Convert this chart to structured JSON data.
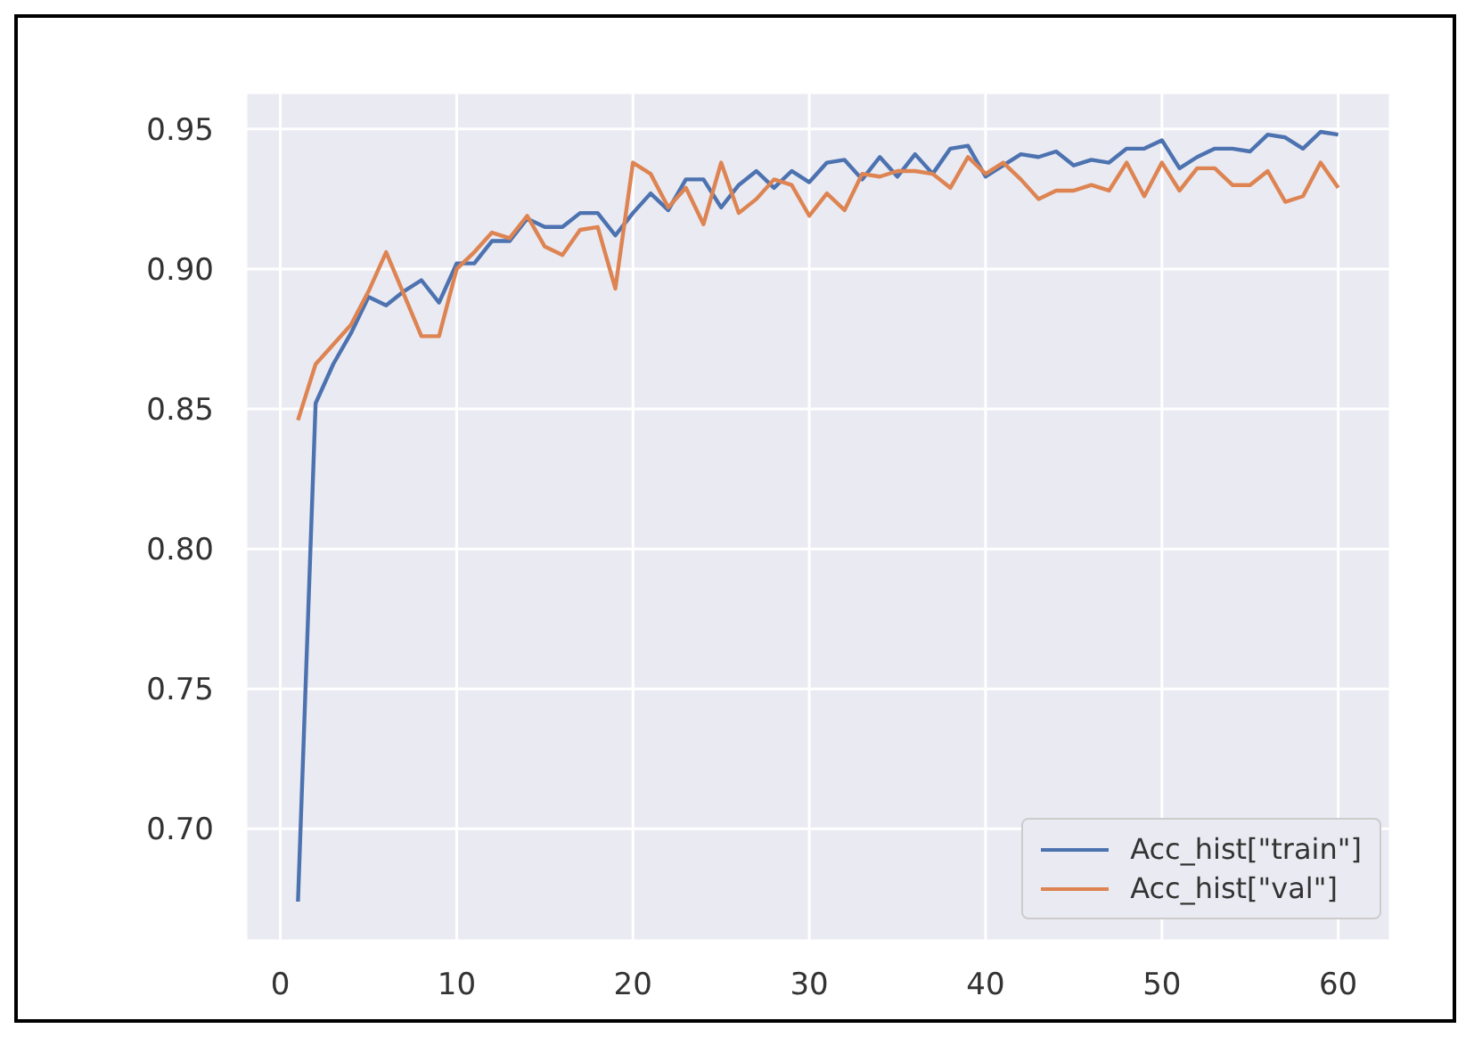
{
  "chart_data": {
    "type": "line",
    "x": [
      1,
      2,
      3,
      4,
      5,
      6,
      7,
      8,
      9,
      10,
      11,
      12,
      13,
      14,
      15,
      16,
      17,
      18,
      19,
      20,
      21,
      22,
      23,
      24,
      25,
      26,
      27,
      28,
      29,
      30,
      31,
      32,
      33,
      34,
      35,
      36,
      37,
      38,
      39,
      40,
      41,
      42,
      43,
      44,
      45,
      46,
      47,
      48,
      49,
      50,
      51,
      52,
      53,
      54,
      55,
      56,
      57,
      58,
      59,
      60
    ],
    "series": [
      {
        "name": "Acc_hist[\"train\"]",
        "color": "#4c72b0",
        "values": [
          0.674,
          0.852,
          0.866,
          0.877,
          0.89,
          0.887,
          0.892,
          0.896,
          0.888,
          0.902,
          0.902,
          0.91,
          0.91,
          0.918,
          0.915,
          0.915,
          0.92,
          0.92,
          0.912,
          0.92,
          0.927,
          0.921,
          0.932,
          0.932,
          0.922,
          0.93,
          0.935,
          0.929,
          0.935,
          0.931,
          0.938,
          0.939,
          0.932,
          0.94,
          0.933,
          0.941,
          0.934,
          0.943,
          0.944,
          0.933,
          0.937,
          0.941,
          0.94,
          0.942,
          0.937,
          0.939,
          0.938,
          0.943,
          0.943,
          0.946,
          0.936,
          0.94,
          0.943,
          0.943,
          0.942,
          0.948,
          0.947,
          0.943,
          0.949,
          0.948
        ]
      },
      {
        "name": "Acc_hist[\"val\"]",
        "color": "#dd8452",
        "values": [
          0.846,
          0.866,
          0.873,
          0.88,
          0.892,
          0.906,
          0.891,
          0.876,
          0.876,
          0.9,
          0.906,
          0.913,
          0.911,
          0.919,
          0.908,
          0.905,
          0.914,
          0.915,
          0.893,
          0.938,
          0.934,
          0.922,
          0.929,
          0.916,
          0.938,
          0.92,
          0.925,
          0.932,
          0.93,
          0.919,
          0.927,
          0.921,
          0.934,
          0.933,
          0.935,
          0.935,
          0.934,
          0.929,
          0.94,
          0.934,
          0.938,
          0.932,
          0.925,
          0.928,
          0.928,
          0.93,
          0.928,
          0.938,
          0.926,
          0.938,
          0.928,
          0.936,
          0.936,
          0.93,
          0.93,
          0.935,
          0.924,
          0.926,
          0.938,
          0.929
        ]
      }
    ],
    "xlim": [
      -1.95,
      62.95
    ],
    "xticks": [
      0,
      10,
      20,
      30,
      40,
      50,
      60
    ],
    "ylim": [
      0.66,
      0.963
    ],
    "yticks": [
      {
        "value": 0.7,
        "label": "0.70"
      },
      {
        "value": 0.75,
        "label": "0.75"
      },
      {
        "value": 0.8,
        "label": "0.80"
      },
      {
        "value": 0.85,
        "label": "0.85"
      },
      {
        "value": 0.9,
        "label": "0.90"
      },
      {
        "value": 0.95,
        "label": "0.95"
      }
    ],
    "grid": true,
    "legend": "bottom right",
    "marker": "none",
    "line_style": "solid"
  }
}
